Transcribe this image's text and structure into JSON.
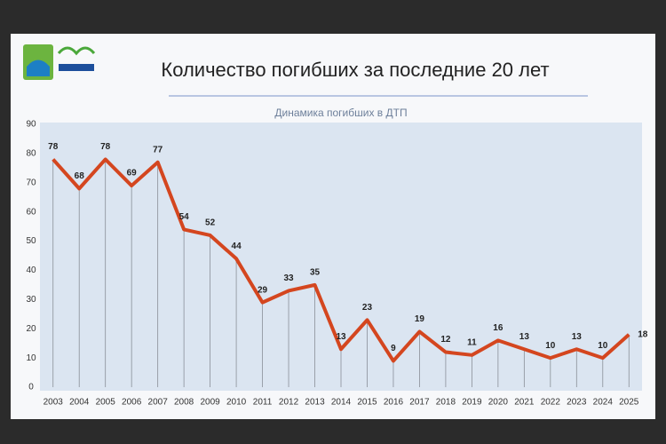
{
  "chart_data": {
    "type": "line",
    "title": "Количество погибших за последние 20 лет",
    "subtitle": "Динамика погибших в ДТП",
    "categories": [
      "2003",
      "2004",
      "2005",
      "2006",
      "2007",
      "2008",
      "2009",
      "2010",
      "2011",
      "2012",
      "2013",
      "2014",
      "2015",
      "2016",
      "2017",
      "2018",
      "2019",
      "2020",
      "2021",
      "2022",
      "2023",
      "2024",
      "2025"
    ],
    "series": [
      {
        "color": "#d4461f",
        "values": [
          78,
          68,
          78,
          69,
          77,
          54,
          52,
          44,
          29,
          33,
          35,
          13,
          23,
          9,
          19,
          12,
          11,
          16,
          13,
          10,
          13,
          10,
          18
        ]
      }
    ],
    "ylim": [
      0,
      90
    ],
    "yticks": [
      0,
      10,
      20,
      30,
      40,
      50,
      60,
      70,
      80,
      90
    ],
    "grid": false
  }
}
